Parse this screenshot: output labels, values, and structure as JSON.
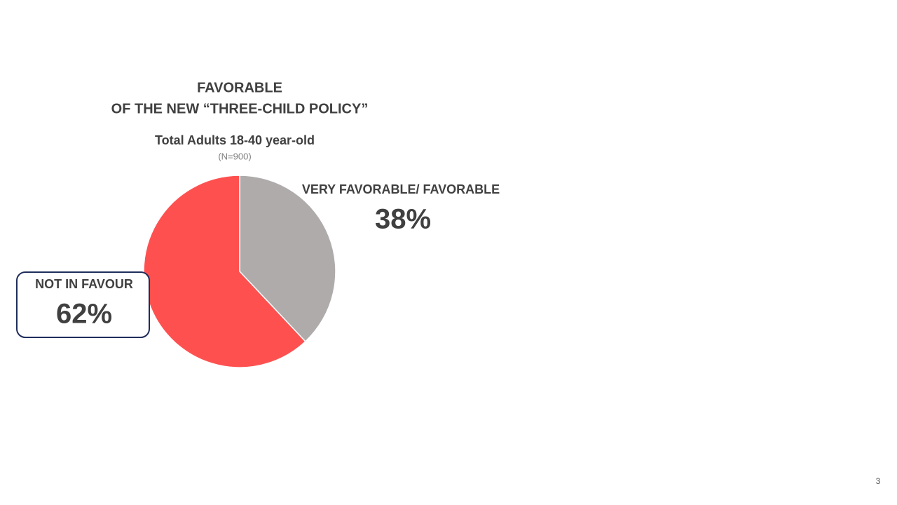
{
  "chart_data": {
    "type": "pie",
    "title": [
      "FAVORABLE",
      "OF THE NEW “THREE-CHILD POLICY”"
    ],
    "subtitle": "Total Adults 18-40 year-old",
    "note": "(N=900)",
    "categories": [
      "VERY FAVORABLE/ FAVORABLE",
      "NOT IN FAVOUR"
    ],
    "values": [
      38,
      62
    ],
    "value_labels": [
      "38%",
      "62%"
    ],
    "colors": [
      "#afabab",
      "#ff5050"
    ]
  },
  "page_number": 3
}
